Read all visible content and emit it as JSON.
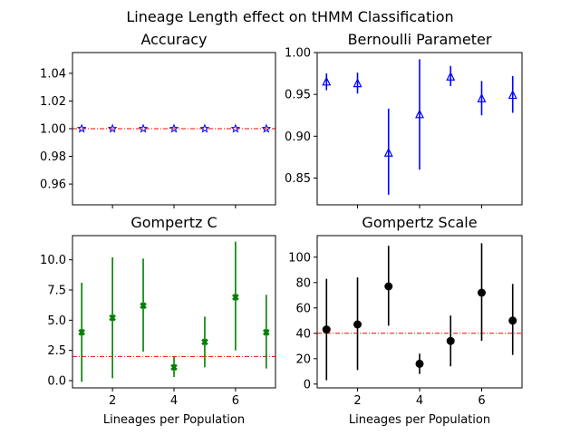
{
  "figure": {
    "suptitle": "Lineage Length effect on tHMM Classification",
    "shared_xlabel": "Lineages per Population",
    "colors": {
      "reference_line": "#ff0000"
    }
  },
  "chart_data": [
    {
      "type": "scatter",
      "title": "Accuracy",
      "xlabel": "",
      "ylabel": "",
      "xlim": [
        0.7,
        7.3
      ],
      "ylim": [
        0.945,
        1.055
      ],
      "xticks": [],
      "yticks": [
        0.96,
        0.98,
        1.0,
        1.02,
        1.04
      ],
      "ytick_labels": [
        "0.96",
        "0.98",
        "1.00",
        "1.02",
        "1.04"
      ],
      "marker": "star",
      "color": "#0000ff",
      "x": [
        1,
        2,
        3,
        4,
        5,
        6,
        7
      ],
      "y": [
        1.0,
        1.0,
        1.0,
        1.0,
        1.0,
        1.0,
        1.0
      ],
      "yerr_low": [
        1.0,
        1.0,
        1.0,
        1.0,
        1.0,
        1.0,
        1.0
      ],
      "yerr_high": [
        1.0,
        1.0,
        1.0,
        1.0,
        1.0,
        1.0,
        1.0
      ],
      "reference_line": 1.0,
      "grid": false
    },
    {
      "type": "scatter",
      "title": "Bernoulli Parameter",
      "xlabel": "",
      "ylabel": "",
      "xlim": [
        0.7,
        7.3
      ],
      "ylim": [
        0.818,
        1.0
      ],
      "xticks": [],
      "yticks": [
        0.85,
        0.9,
        0.95,
        1.0
      ],
      "ytick_labels": [
        "0.85",
        "0.90",
        "0.95",
        "1.00"
      ],
      "marker": "triangle",
      "color": "#0000ff",
      "x": [
        1,
        2,
        3,
        4,
        5,
        6,
        7
      ],
      "y": [
        0.965,
        0.963,
        0.88,
        0.926,
        0.971,
        0.945,
        0.949
      ],
      "yerr_low": [
        0.955,
        0.951,
        0.83,
        0.86,
        0.96,
        0.925,
        0.928
      ],
      "yerr_high": [
        0.975,
        0.976,
        0.933,
        0.992,
        0.984,
        0.966,
        0.972
      ],
      "reference_line": null,
      "grid": false
    },
    {
      "type": "scatter",
      "title": "Gompertz C",
      "xlabel": "Lineages per Population",
      "ylabel": "",
      "xlim": [
        0.7,
        7.3
      ],
      "ylim": [
        -0.6,
        12.0
      ],
      "xticks": [
        2,
        4,
        6
      ],
      "xtick_labels": [
        "2",
        "4",
        "6"
      ],
      "yticks": [
        0.0,
        2.5,
        5.0,
        7.5,
        10.0
      ],
      "ytick_labels": [
        "0.0",
        "2.5",
        "5.0",
        "7.5",
        "10.0"
      ],
      "marker": "x-filled",
      "color": "#008000",
      "x": [
        1,
        2,
        3,
        4,
        5,
        6,
        7
      ],
      "y": [
        4.0,
        5.2,
        6.2,
        1.1,
        3.2,
        6.9,
        4.0
      ],
      "yerr_low": [
        -0.1,
        0.2,
        2.4,
        0.3,
        1.1,
        2.5,
        1.0
      ],
      "yerr_high": [
        8.1,
        10.2,
        10.1,
        2.0,
        5.3,
        11.5,
        7.1
      ],
      "reference_line": 2.0,
      "grid": false
    },
    {
      "type": "scatter",
      "title": "Gompertz Scale",
      "xlabel": "Lineages per Population",
      "ylabel": "",
      "xlim": [
        0.7,
        7.3
      ],
      "ylim": [
        -3,
        117
      ],
      "xticks": [
        2,
        4,
        6
      ],
      "xtick_labels": [
        "2",
        "4",
        "6"
      ],
      "yticks": [
        0,
        20,
        40,
        60,
        80,
        100
      ],
      "ytick_labels": [
        "0",
        "20",
        "40",
        "60",
        "80",
        "100"
      ],
      "marker": "circle",
      "color": "#000000",
      "x": [
        1,
        2,
        3,
        4,
        5,
        6,
        7
      ],
      "y": [
        43,
        47,
        77,
        16,
        34,
        72,
        50
      ],
      "yerr_low": [
        3,
        11,
        46,
        8,
        14,
        34,
        23
      ],
      "yerr_high": [
        83,
        84,
        109,
        24,
        54,
        111,
        79
      ],
      "reference_line": 40,
      "grid": false
    }
  ]
}
